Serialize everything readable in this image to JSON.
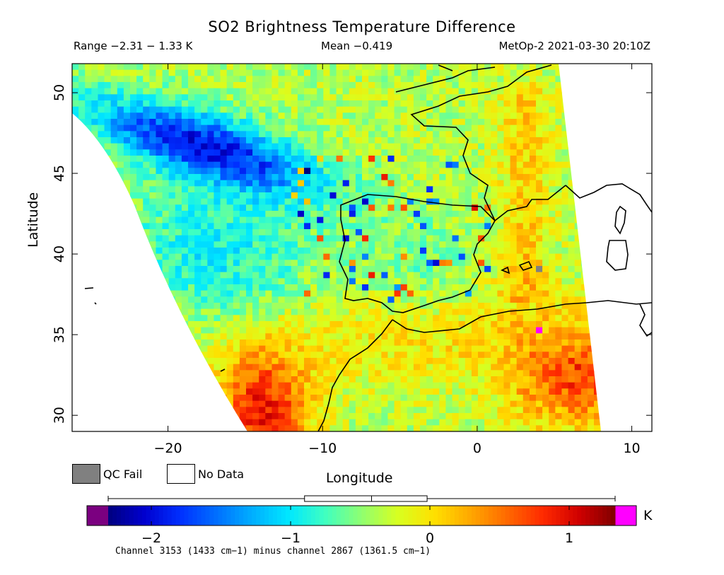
{
  "title": "SO2 Brightness Temperature Difference",
  "range_text": "Range −2.31 − 1.33 K",
  "mean_text": "Mean −0.419",
  "satellite_text": "MetOp-2 2021-03-30 20:10Z",
  "map": {
    "x_axis_label": "Longitude",
    "y_axis_label": "Latitude",
    "lon_range": [
      -26.2,
      11.3
    ],
    "lat_range": [
      29.0,
      51.8
    ],
    "x_ticks": [
      {
        "value": -20,
        "label": "−20"
      },
      {
        "value": -10,
        "label": "−10"
      },
      {
        "value": 0,
        "label": "0"
      },
      {
        "value": 10,
        "label": "10"
      }
    ],
    "y_ticks": [
      {
        "value": 30,
        "label": "30"
      },
      {
        "value": 35,
        "label": "35"
      },
      {
        "value": 40,
        "label": "40"
      },
      {
        "value": 45,
        "label": "45"
      },
      {
        "value": 50,
        "label": "50"
      }
    ],
    "regions": [
      "North Atlantic",
      "Iberian Peninsula",
      "France",
      "Morocco",
      "Algeria",
      "Mediterranean",
      "Sardinia",
      "Corsica",
      "Madeira"
    ]
  },
  "legend": {
    "qc_fail_label": "QC Fail",
    "qc_fail_color": "#808080",
    "no_data_label": "No Data",
    "no_data_color": "#ffffff"
  },
  "colorbar": {
    "min": -2.31,
    "max": 1.33,
    "unit": "K",
    "ticks": [
      {
        "value": -2,
        "label": "−2"
      },
      {
        "value": -1,
        "label": "−1"
      },
      {
        "value": 0,
        "label": "0"
      },
      {
        "value": 1,
        "label": "1"
      }
    ],
    "below_color": "#7b0080",
    "above_color": "#ff00ff",
    "colors": [
      "#00007f",
      "#0000cf",
      "#0030ff",
      "#0070ff",
      "#00b0ff",
      "#00e8ff",
      "#40ffc0",
      "#90ff70",
      "#d8ff20",
      "#ffe000",
      "#ffa800",
      "#ff6a00",
      "#ff2a00",
      "#d00000",
      "#800000"
    ],
    "boxplot": {
      "whisker_low": -2.31,
      "q1": -0.9,
      "median": -0.419,
      "q3": -0.02,
      "whisker_high": 1.33
    }
  },
  "footnote": "Channel 3153 (1433 cm−1) minus channel 2867 (1361.5 cm−1)"
}
